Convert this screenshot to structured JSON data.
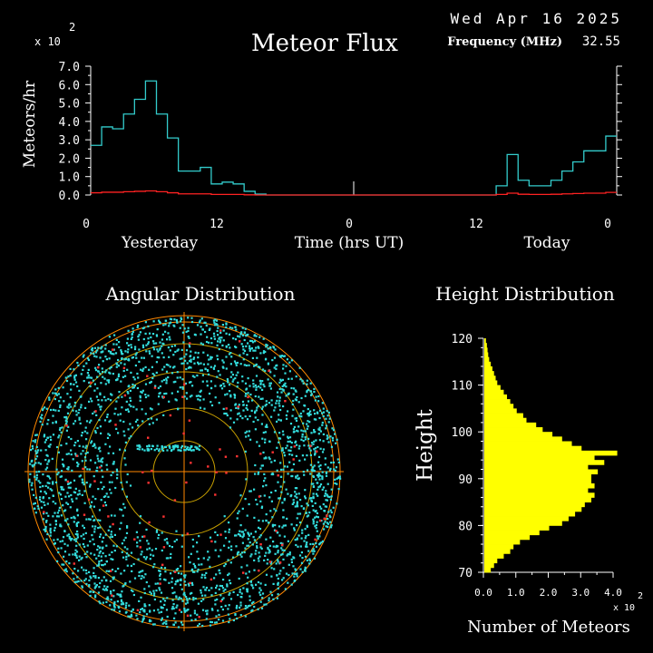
{
  "header": {
    "date": "Wed Apr 16 2025",
    "frequency_label": "Frequency (MHz)",
    "frequency_value": "32.55",
    "multiplier": "x 10",
    "multiplier_exp": "2"
  },
  "colors": {
    "background": "#000000",
    "axis": "#ffffff",
    "flux_line": "#33cccc",
    "baseline_line": "#ff2222",
    "scatter_main": "#33dddd",
    "scatter_alt": "#ff3333",
    "rings_outer": "#ff8800",
    "rings_inner": "#c8a000",
    "histogram": "#ffff00"
  },
  "chart_data": [
    {
      "type": "line",
      "title": "Meteor Flux",
      "ylabel": "Meteors/hr",
      "xlabel": "Time (hrs UT)",
      "ylim": [
        0,
        7
      ],
      "y_multiplier_label": "x 10 2",
      "yticks": [
        "0.0",
        "1.0",
        "2.0",
        "3.0",
        "4.0",
        "5.0",
        "6.0",
        "7.0"
      ],
      "xticks": [
        "0",
        "12",
        "0",
        "12",
        "0"
      ],
      "day_labels": [
        "Yesterday",
        "Today"
      ],
      "x_range_hours": [
        -48,
        0
      ],
      "series": [
        {
          "values_hourly": [
            2.7,
            3.7,
            3.6,
            4.4,
            5.2,
            6.2,
            4.4,
            3.1,
            1.3,
            1.3,
            1.5,
            0.6,
            0.7,
            0.6,
            0.2,
            0.05,
            0.0,
            0.0,
            0.0,
            0.0,
            0.0,
            0.0,
            0.0,
            0.0,
            0.0,
            0.0,
            0.0,
            0.0,
            0.0,
            0.0,
            0.0,
            0.0,
            0.0,
            0.0,
            0.0,
            0.0,
            0.0,
            0.5,
            2.2,
            0.8,
            0.5,
            0.5,
            0.8,
            1.3,
            1.8,
            2.4,
            2.4,
            3.2
          ]
        },
        {
          "values_hourly": [
            0.12,
            0.15,
            0.15,
            0.18,
            0.2,
            0.22,
            0.18,
            0.12,
            0.06,
            0.06,
            0.06,
            0.03,
            0.03,
            0.03,
            0.01,
            0.0,
            0.0,
            0.0,
            0.0,
            0.0,
            0.0,
            0.0,
            0.0,
            0.0,
            0.0,
            0.0,
            0.0,
            0.0,
            0.0,
            0.0,
            0.0,
            0.0,
            0.0,
            0.0,
            0.0,
            0.0,
            0.0,
            0.03,
            0.1,
            0.04,
            0.03,
            0.03,
            0.04,
            0.06,
            0.08,
            0.1,
            0.1,
            0.14
          ]
        }
      ],
      "marker_at_hour": -24
    },
    {
      "type": "scatter",
      "title": "Angular Distribution",
      "ring_count": 6,
      "crosshair": true,
      "series": [
        {
          "point_count": 2600,
          "distribution": "polar-ring-weighted"
        },
        {
          "point_count": 90,
          "distribution": "polar-uniform"
        }
      ]
    },
    {
      "type": "bar",
      "orientation": "horizontal",
      "title": "Height Distribution",
      "ylabel": "Height",
      "xlabel": "Number of Meteors",
      "x_multiplier_label": "x 10 2",
      "xlim": [
        0,
        4
      ],
      "xticks": [
        "0.0",
        "1.0",
        "2.0",
        "3.0",
        "4.0"
      ],
      "ylim": [
        70,
        120
      ],
      "yticks": [
        "70",
        "80",
        "90",
        "100",
        "110",
        "120"
      ],
      "heights": [
        70,
        71,
        72,
        73,
        74,
        75,
        76,
        77,
        78,
        79,
        80,
        81,
        82,
        83,
        84,
        85,
        86,
        87,
        88,
        89,
        90,
        91,
        92,
        93,
        94,
        95,
        96,
        97,
        98,
        99,
        100,
        101,
        102,
        103,
        104,
        105,
        106,
        107,
        108,
        109,
        110,
        111,
        112,
        113,
        114,
        115,
        116,
        117,
        118,
        119
      ],
      "values": [
        0.2,
        0.3,
        0.4,
        0.6,
        0.8,
        0.9,
        1.1,
        1.4,
        1.7,
        2.0,
        2.4,
        2.6,
        2.8,
        3.0,
        3.1,
        3.3,
        3.4,
        3.2,
        3.4,
        3.3,
        3.3,
        3.5,
        3.2,
        3.7,
        3.4,
        4.1,
        3.0,
        2.7,
        2.4,
        2.1,
        1.8,
        1.6,
        1.3,
        1.2,
        1.0,
        0.9,
        0.8,
        0.7,
        0.6,
        0.5,
        0.4,
        0.35,
        0.3,
        0.25,
        0.2,
        0.15,
        0.12,
        0.1,
        0.08,
        0.05
      ]
    }
  ]
}
